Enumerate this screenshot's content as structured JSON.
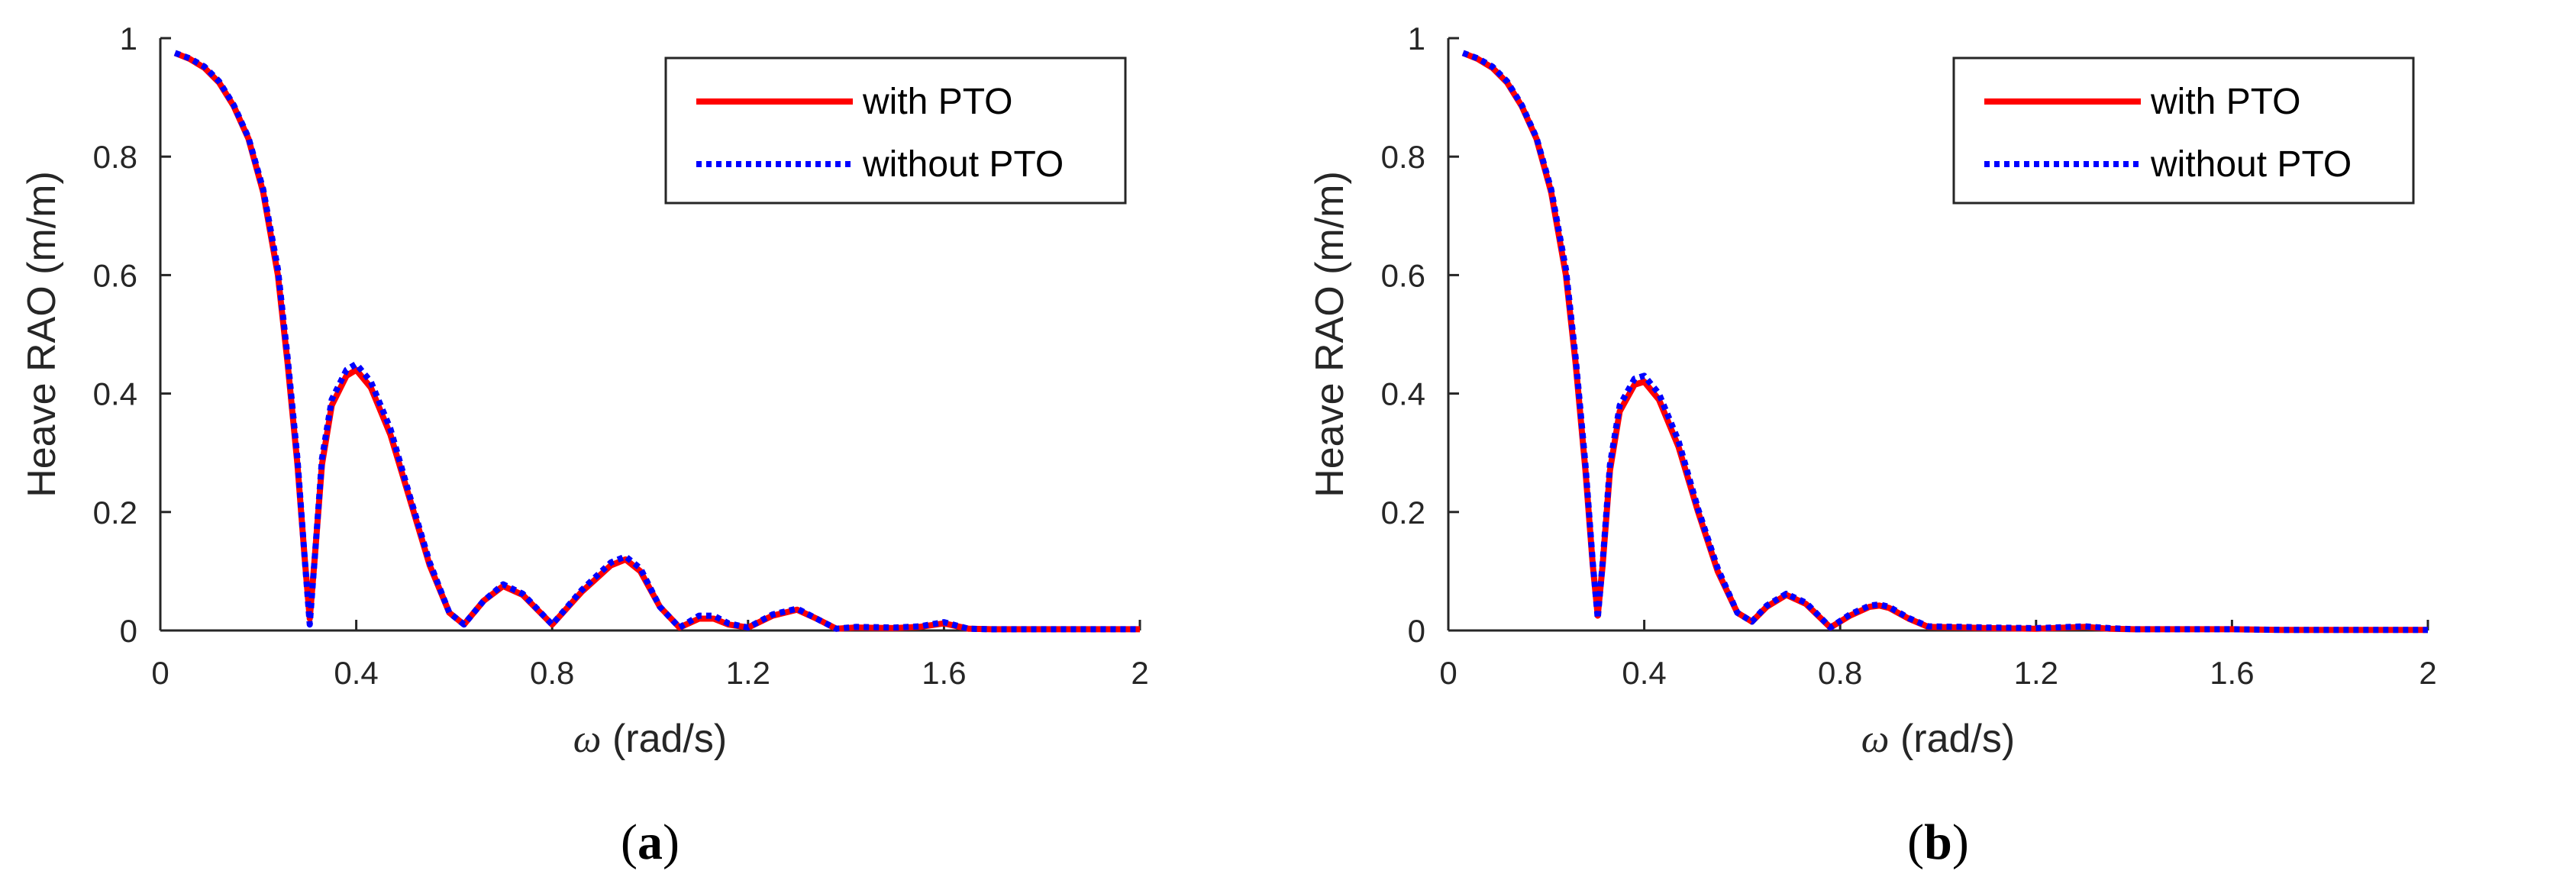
{
  "chart_data": [
    {
      "id": "a",
      "type": "line",
      "caption_letter": "a",
      "title": "",
      "xlabel_symbol": "ω",
      "xlabel_unit": "(rad/s)",
      "ylabel": "Heave RAO (m/m)",
      "xlim": [
        0,
        2
      ],
      "ylim": [
        0,
        1
      ],
      "xticks": [
        0,
        0.4,
        0.8,
        1.2,
        1.6,
        2
      ],
      "xtick_labels": [
        "0",
        "0.4",
        "0.8",
        "1.2",
        "1.6",
        "2"
      ],
      "yticks": [
        0,
        0.2,
        0.4,
        0.6,
        0.8,
        1
      ],
      "ytick_labels": [
        "0",
        "0.2",
        "0.4",
        "0.6",
        "0.8",
        "1"
      ],
      "grid": false,
      "legend_position": "top-right",
      "series": [
        {
          "name": "with PTO",
          "color": "#ff0000",
          "style": "solid",
          "x": [
            0.03,
            0.06,
            0.09,
            0.12,
            0.15,
            0.18,
            0.21,
            0.24,
            0.26,
            0.28,
            0.295,
            0.305,
            0.315,
            0.33,
            0.35,
            0.38,
            0.4,
            0.43,
            0.47,
            0.51,
            0.55,
            0.59,
            0.62,
            0.66,
            0.7,
            0.74,
            0.8,
            0.86,
            0.92,
            0.95,
            0.98,
            1.02,
            1.06,
            1.1,
            1.13,
            1.16,
            1.2,
            1.25,
            1.3,
            1.34,
            1.38,
            1.42,
            1.5,
            1.55,
            1.6,
            1.65,
            1.7,
            1.8,
            1.9,
            2.0
          ],
          "values": [
            0.975,
            0.965,
            0.95,
            0.925,
            0.885,
            0.83,
            0.74,
            0.6,
            0.45,
            0.28,
            0.12,
            0.02,
            0.12,
            0.28,
            0.38,
            0.43,
            0.44,
            0.41,
            0.33,
            0.22,
            0.11,
            0.03,
            0.01,
            0.05,
            0.075,
            0.06,
            0.01,
            0.065,
            0.11,
            0.12,
            0.1,
            0.04,
            0.005,
            0.02,
            0.02,
            0.01,
            0.005,
            0.025,
            0.035,
            0.02,
            0.003,
            0.005,
            0.004,
            0.006,
            0.012,
            0.003,
            0.002,
            0.002,
            0.002,
            0.002
          ]
        },
        {
          "name": "without PTO",
          "color": "#0000ff",
          "style": "dotted",
          "x": [
            0.03,
            0.06,
            0.09,
            0.12,
            0.15,
            0.18,
            0.21,
            0.24,
            0.26,
            0.28,
            0.295,
            0.305,
            0.315,
            0.33,
            0.35,
            0.38,
            0.4,
            0.43,
            0.47,
            0.51,
            0.55,
            0.59,
            0.62,
            0.66,
            0.7,
            0.74,
            0.8,
            0.86,
            0.92,
            0.95,
            0.98,
            1.02,
            1.06,
            1.1,
            1.13,
            1.16,
            1.2,
            1.25,
            1.3,
            1.34,
            1.38,
            1.42,
            1.5,
            1.55,
            1.6,
            1.65,
            1.7,
            1.8,
            1.9,
            2.0
          ],
          "values": [
            0.975,
            0.966,
            0.952,
            0.927,
            0.887,
            0.832,
            0.745,
            0.61,
            0.46,
            0.29,
            0.12,
            0.01,
            0.12,
            0.29,
            0.39,
            0.44,
            0.45,
            0.42,
            0.34,
            0.225,
            0.115,
            0.03,
            0.01,
            0.05,
            0.078,
            0.062,
            0.01,
            0.068,
            0.115,
            0.125,
            0.105,
            0.04,
            0.005,
            0.025,
            0.025,
            0.012,
            0.005,
            0.027,
            0.037,
            0.02,
            0.003,
            0.006,
            0.005,
            0.007,
            0.014,
            0.003,
            0.002,
            0.002,
            0.002,
            0.002
          ]
        }
      ]
    },
    {
      "id": "b",
      "type": "line",
      "caption_letter": "b",
      "title": "",
      "xlabel_symbol": "ω",
      "xlabel_unit": "(rad/s)",
      "ylabel": "Heave RAO (m/m)",
      "xlim": [
        0,
        2
      ],
      "ylim": [
        0,
        1
      ],
      "xticks": [
        0,
        0.4,
        0.8,
        1.2,
        1.6,
        2
      ],
      "xtick_labels": [
        "0",
        "0.4",
        "0.8",
        "1.2",
        "1.6",
        "2"
      ],
      "yticks": [
        0,
        0.2,
        0.4,
        0.6,
        0.8,
        1
      ],
      "ytick_labels": [
        "0",
        "0.2",
        "0.4",
        "0.6",
        "0.8",
        "1"
      ],
      "grid": false,
      "legend_position": "top-right",
      "series": [
        {
          "name": "with PTO",
          "color": "#ff0000",
          "style": "solid",
          "x": [
            0.03,
            0.06,
            0.09,
            0.12,
            0.15,
            0.18,
            0.21,
            0.24,
            0.26,
            0.28,
            0.295,
            0.305,
            0.315,
            0.33,
            0.35,
            0.38,
            0.4,
            0.43,
            0.47,
            0.51,
            0.55,
            0.59,
            0.62,
            0.65,
            0.69,
            0.73,
            0.78,
            0.82,
            0.86,
            0.88,
            0.9,
            0.94,
            0.98,
            1.05,
            1.1,
            1.2,
            1.3,
            1.35,
            1.4,
            1.5,
            1.6,
            1.7,
            1.8,
            1.9,
            2.0
          ],
          "values": [
            0.975,
            0.965,
            0.95,
            0.925,
            0.885,
            0.83,
            0.74,
            0.6,
            0.45,
            0.27,
            0.11,
            0.025,
            0.11,
            0.27,
            0.37,
            0.415,
            0.42,
            0.39,
            0.31,
            0.2,
            0.1,
            0.03,
            0.015,
            0.04,
            0.06,
            0.045,
            0.005,
            0.025,
            0.04,
            0.042,
            0.038,
            0.02,
            0.006,
            0.005,
            0.004,
            0.003,
            0.006,
            0.003,
            0.002,
            0.002,
            0.002,
            0.001,
            0.001,
            0.001,
            0.001
          ]
        },
        {
          "name": "without PTO",
          "color": "#0000ff",
          "style": "dotted",
          "x": [
            0.03,
            0.06,
            0.09,
            0.12,
            0.15,
            0.18,
            0.21,
            0.24,
            0.26,
            0.28,
            0.295,
            0.305,
            0.315,
            0.33,
            0.35,
            0.38,
            0.4,
            0.43,
            0.47,
            0.51,
            0.55,
            0.59,
            0.62,
            0.65,
            0.69,
            0.73,
            0.78,
            0.82,
            0.86,
            0.88,
            0.9,
            0.94,
            0.98,
            1.05,
            1.1,
            1.2,
            1.3,
            1.35,
            1.4,
            1.5,
            1.6,
            1.7,
            1.8,
            1.9,
            2.0
          ],
          "values": [
            0.975,
            0.966,
            0.952,
            0.927,
            0.887,
            0.832,
            0.745,
            0.61,
            0.46,
            0.28,
            0.115,
            0.02,
            0.115,
            0.28,
            0.38,
            0.425,
            0.43,
            0.4,
            0.32,
            0.205,
            0.105,
            0.03,
            0.015,
            0.042,
            0.062,
            0.047,
            0.005,
            0.027,
            0.042,
            0.044,
            0.04,
            0.021,
            0.007,
            0.006,
            0.005,
            0.004,
            0.007,
            0.004,
            0.002,
            0.002,
            0.002,
            0.001,
            0.001,
            0.001,
            0.001
          ]
        }
      ]
    }
  ]
}
